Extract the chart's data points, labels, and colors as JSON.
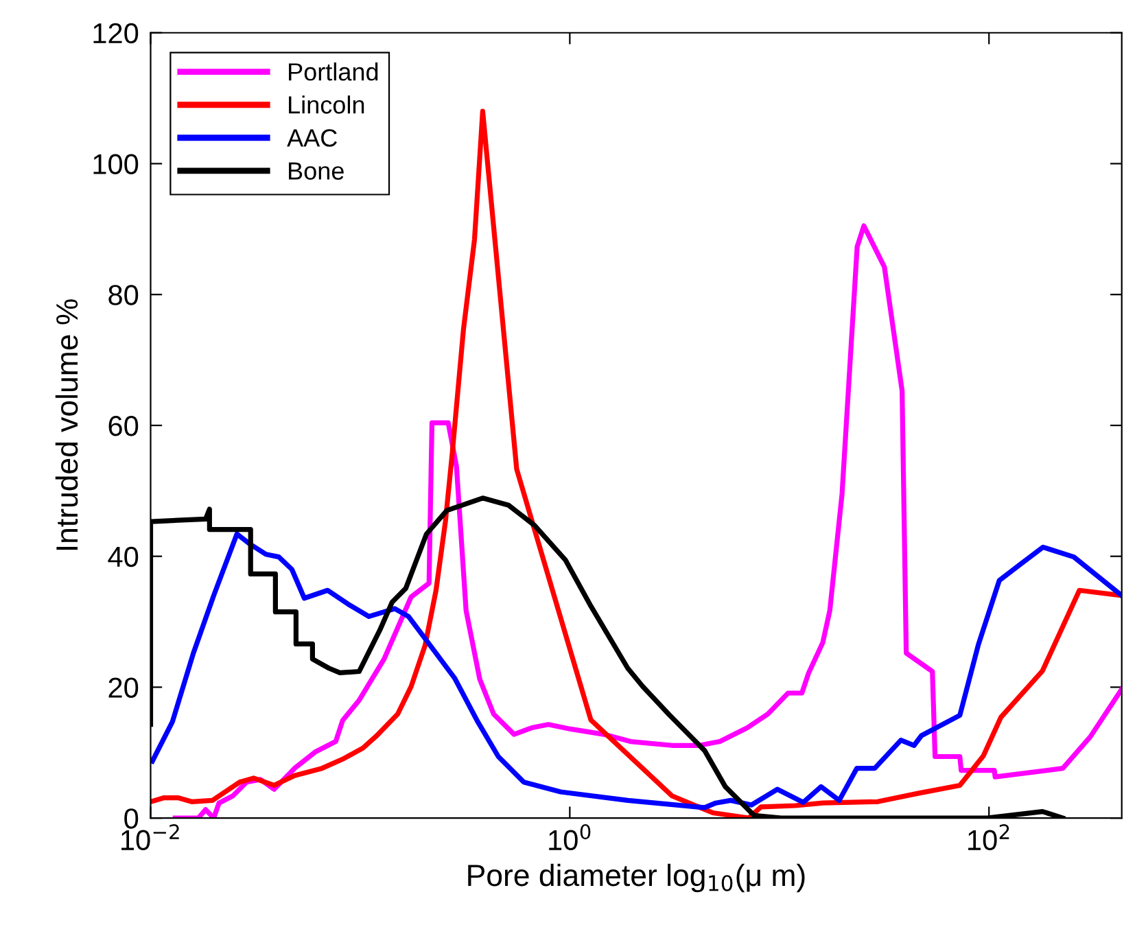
{
  "chart_data": {
    "type": "line",
    "xlabel": "Pore diameter log$_{10}$(μ m)",
    "ylabel": "Intruded volume %",
    "log": "x",
    "xlim": [
      0.01,
      430
    ],
    "xticks": [
      {
        "value": 0.01,
        "label": "10$^{−2}$"
      },
      {
        "value": 1,
        "label": "10$^{0}$"
      },
      {
        "value": 100,
        "label": "10$^{2}$"
      }
    ],
    "ylim": [
      0,
      120
    ],
    "yticks": [
      0,
      20,
      40,
      60,
      80,
      100,
      120
    ],
    "grid": false,
    "legend": "top left",
    "line_style": "solid",
    "marker": "none",
    "series": [
      {
        "name": "Portland",
        "color": "#ff00ff",
        "x": [
          0.0131,
          0.0169,
          0.0183,
          0.02,
          0.0212,
          0.0247,
          0.0287,
          0.0334,
          0.0388,
          0.0486,
          0.061,
          0.0764,
          0.0824,
          0.0988,
          0.13,
          0.175,
          0.213,
          0.22,
          0.263,
          0.288,
          0.32,
          0.372,
          0.433,
          0.542,
          0.659,
          0.79,
          1.01,
          1.45,
          1.95,
          3.07,
          4.15,
          5.2,
          7.03,
          8.81,
          11.0,
          12.8,
          13.8,
          16.1,
          17.4,
          19.9,
          23.5,
          25.3,
          31.7,
          38.5,
          40.3,
          53.7,
          55.3,
          72.6,
          73.7,
          106,
          107,
          225,
          304,
          430
        ],
        "values": [
          0,
          0,
          1.3,
          0,
          2.3,
          3.4,
          5.5,
          5.9,
          4.4,
          7.6,
          10.1,
          11.7,
          14.9,
          18.0,
          24.3,
          33.8,
          35.9,
          60.4,
          60.4,
          53.7,
          31.7,
          21.2,
          15.9,
          12.8,
          13.8,
          14.3,
          13.6,
          12.8,
          11.7,
          11.1,
          11.1,
          11.7,
          13.8,
          15.9,
          19.1,
          19.1,
          22.2,
          26.8,
          31.7,
          49.5,
          87.3,
          90.5,
          84.2,
          65.3,
          25.2,
          22.4,
          9.4,
          9.4,
          7.3,
          7.3,
          6.3,
          7.6,
          12.4,
          19.7
        ]
      },
      {
        "name": "Lincoln",
        "color": "#ff0000",
        "x": [
          0.01,
          0.0116,
          0.0135,
          0.0157,
          0.0197,
          0.0266,
          0.031,
          0.0388,
          0.0486,
          0.0657,
          0.0824,
          0.103,
          0.12,
          0.151,
          0.175,
          0.204,
          0.23,
          0.255,
          0.275,
          0.311,
          0.351,
          0.384,
          0.558,
          1.26,
          3.07,
          4.82,
          7.13,
          8.17,
          11.9,
          16.1,
          29.4,
          46.3,
          72.6,
          94.0,
          114,
          180,
          270,
          430
        ],
        "values": [
          2.5,
          3.1,
          3.1,
          2.5,
          2.7,
          5.5,
          6.1,
          5.0,
          6.5,
          7.6,
          9.0,
          10.7,
          12.6,
          15.9,
          20.1,
          26.4,
          34.8,
          45.3,
          55.8,
          74.7,
          88.4,
          108.0,
          53.3,
          15.0,
          3.4,
          0.8,
          0,
          1.7,
          1.9,
          2.3,
          2.5,
          3.8,
          5.0,
          9.5,
          15.4,
          22.5,
          34.8,
          34.0
        ]
      },
      {
        "name": "AAC",
        "color": "#0000ff",
        "x": [
          0.0102,
          0.0127,
          0.016,
          0.02,
          0.0258,
          0.03,
          0.0355,
          0.0409,
          0.0472,
          0.0541,
          0.0699,
          0.0875,
          0.11,
          0.146,
          0.17,
          0.23,
          0.282,
          0.364,
          0.456,
          0.603,
          0.905,
          1.89,
          4.4,
          4.97,
          5.86,
          7.35,
          9.79,
          13.0,
          15.8,
          19.3,
          23.4,
          28.5,
          38.0,
          43.9,
          47.6,
          72.6,
          89.0,
          112,
          140,
          181,
          254,
          430
        ],
        "values": [
          8.7,
          14.7,
          25.2,
          34.0,
          43.4,
          41.8,
          40.3,
          39.9,
          38.0,
          33.6,
          34.8,
          32.7,
          30.8,
          32.0,
          30.8,
          25.2,
          21.4,
          14.7,
          9.4,
          5.5,
          4.0,
          2.7,
          1.6,
          2.3,
          2.7,
          2.0,
          4.4,
          2.4,
          4.8,
          2.7,
          7.6,
          7.6,
          11.9,
          11.1,
          12.6,
          15.7,
          26.5,
          36.3,
          38.7,
          41.4,
          39.9,
          34.0
        ]
      },
      {
        "name": "Bone",
        "color": "#000000",
        "x": [
          0.01,
          0.01,
          0.0183,
          0.0191,
          0.0191,
          0.03,
          0.03,
          0.0394,
          0.0394,
          0.0494,
          0.0494,
          0.0592,
          0.0592,
          0.0709,
          0.08,
          0.0988,
          0.124,
          0.142,
          0.165,
          0.207,
          0.259,
          0.384,
          0.511,
          0.68,
          0.955,
          1.26,
          1.89,
          2.23,
          2.98,
          4.4,
          5.52,
          7.58,
          10.2,
          98,
          180,
          225
        ],
        "values": [
          14.3,
          45.3,
          45.7,
          47.2,
          44.1,
          44.1,
          37.3,
          37.3,
          31.5,
          31.5,
          26.6,
          26.6,
          24.3,
          22.9,
          22.2,
          22.4,
          28.7,
          33.0,
          35.1,
          43.4,
          47.0,
          48.9,
          47.8,
          44.7,
          39.4,
          32.4,
          22.9,
          20.1,
          15.8,
          10.3,
          4.8,
          0.4,
          0,
          0,
          1.0,
          0
        ]
      }
    ]
  }
}
